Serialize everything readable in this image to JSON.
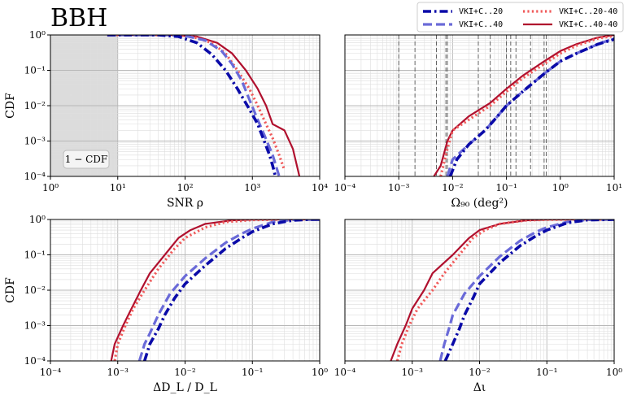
{
  "figure_title": "BBH",
  "legend": [
    {
      "name": "VKI+C..20",
      "color": "#0a0aa8",
      "dash": "dashdot"
    },
    {
      "name": "VKI+C..20-40",
      "color": "#f05a5a",
      "dash": "dotted"
    },
    {
      "name": "VKI+C..40",
      "color": "#6a6ad8",
      "dash": "dashed"
    },
    {
      "name": "VKI+C..40-40",
      "color": "#b0102e",
      "dash": "solid"
    }
  ],
  "chart_data": [
    {
      "type": "line",
      "panel": "top-left",
      "xlabel": "SNR  ρ",
      "ylabel": "CDF",
      "xscale": "log",
      "yscale": "log",
      "xlim": [
        1,
        10000
      ],
      "ylim": [
        0.0001,
        1
      ],
      "xticks": [
        "10^0",
        "10^1",
        "10^2",
        "10^3",
        "10^4"
      ],
      "yticks": [
        "10^-4",
        "10^-3",
        "10^-2",
        "10^-1",
        "10^0"
      ],
      "shaded_region": {
        "x": [
          1,
          10
        ]
      },
      "annotation": "1 − CDF",
      "series": [
        {
          "name": "VKI+C..20",
          "x": [
            7,
            40,
            80,
            150,
            250,
            400,
            600,
            900,
            1200,
            1500,
            1800,
            2000,
            2200
          ],
          "y": [
            1,
            1,
            0.9,
            0.6,
            0.28,
            0.1,
            0.03,
            0.008,
            0.003,
            0.001,
            0.0004,
            0.0002,
            0.0001
          ]
        },
        {
          "name": "VKI+C..40",
          "x": [
            7,
            50,
            100,
            200,
            350,
            500,
            700,
            900,
            1200,
            1500,
            2000,
            2500
          ],
          "y": [
            1,
            1,
            0.95,
            0.7,
            0.35,
            0.15,
            0.05,
            0.015,
            0.004,
            0.0015,
            0.0004,
            0.0001
          ]
        },
        {
          "name": "VKI+C..20-40",
          "x": [
            7,
            60,
            120,
            250,
            400,
            600,
            900,
            1200,
            1600,
            2000,
            2500,
            3000
          ],
          "y": [
            1,
            1,
            0.93,
            0.6,
            0.3,
            0.1,
            0.03,
            0.01,
            0.003,
            0.0012,
            0.0004,
            0.00015
          ]
        },
        {
          "name": "VKI+C..40-40",
          "x": [
            7,
            60,
            150,
            300,
            500,
            800,
            1200,
            1600,
            2000,
            3000,
            4000,
            5000
          ],
          "y": [
            1,
            1,
            0.9,
            0.6,
            0.3,
            0.1,
            0.03,
            0.01,
            0.003,
            0.002,
            0.0006,
            0.0001
          ]
        }
      ]
    },
    {
      "type": "line",
      "panel": "top-right",
      "xlabel": "Ω₉₀ (deg²)",
      "ylabel": "",
      "xscale": "log",
      "yscale": "log",
      "xlim": [
        0.0001,
        10
      ],
      "ylim": [
        0.0001,
        1
      ],
      "xticks": [
        "10^-4",
        "10^-3",
        "10^-2",
        "10^-1",
        "10^0",
        "10^1"
      ],
      "yticks": [],
      "vlines": [
        0.001,
        0.002,
        0.005,
        0.0075,
        0.008,
        0.03,
        0.05,
        0.1,
        0.12,
        0.15,
        0.28,
        0.5,
        0.55,
        10
      ],
      "series": [
        {
          "name": "VKI+C..20",
          "x": [
            0.009,
            0.012,
            0.02,
            0.04,
            0.06,
            0.1,
            0.2,
            0.5,
            1,
            2,
            5,
            10
          ],
          "y": [
            0.0001,
            0.0003,
            0.0008,
            0.002,
            0.004,
            0.01,
            0.025,
            0.08,
            0.18,
            0.3,
            0.55,
            0.75
          ]
        },
        {
          "name": "VKI+C..40",
          "x": [
            0.008,
            0.01,
            0.02,
            0.04,
            0.06,
            0.1,
            0.2,
            0.5,
            1,
            2,
            5,
            10
          ],
          "y": [
            0.0001,
            0.0003,
            0.0008,
            0.002,
            0.004,
            0.01,
            0.025,
            0.08,
            0.18,
            0.3,
            0.55,
            0.8
          ]
        },
        {
          "name": "VKI+C..20-40",
          "x": [
            0.006,
            0.008,
            0.01,
            0.02,
            0.05,
            0.1,
            0.2,
            0.5,
            1,
            2,
            5,
            10
          ],
          "y": [
            0.0001,
            0.0006,
            0.002,
            0.004,
            0.01,
            0.025,
            0.06,
            0.15,
            0.3,
            0.5,
            0.8,
            0.95
          ]
        },
        {
          "name": "VKI+C..40-40",
          "x": [
            0.0045,
            0.006,
            0.008,
            0.01,
            0.02,
            0.05,
            0.1,
            0.2,
            0.5,
            1,
            2,
            5,
            10
          ],
          "y": [
            0.0001,
            0.0002,
            0.001,
            0.002,
            0.005,
            0.012,
            0.03,
            0.07,
            0.18,
            0.35,
            0.55,
            0.85,
            1
          ]
        }
      ]
    },
    {
      "type": "line",
      "panel": "bottom-left",
      "xlabel": "ΔD_L / D_L",
      "ylabel": "CDF",
      "xscale": "log",
      "yscale": "log",
      "xlim": [
        0.0001,
        1
      ],
      "ylim": [
        0.0001,
        1
      ],
      "xticks": [
        "10^-4",
        "10^-3",
        "10^-2",
        "10^-1",
        "10^0"
      ],
      "yticks": [
        "10^-4",
        "10^-3",
        "10^-2",
        "10^-1",
        "10^0"
      ],
      "series": [
        {
          "name": "VKI+C..20",
          "x": [
            0.0025,
            0.003,
            0.004,
            0.005,
            0.007,
            0.01,
            0.02,
            0.04,
            0.07,
            0.1,
            0.2,
            0.4,
            0.7,
            1
          ],
          "y": [
            0.0001,
            0.0003,
            0.0008,
            0.002,
            0.006,
            0.015,
            0.05,
            0.15,
            0.3,
            0.45,
            0.75,
            0.95,
            1,
            1
          ]
        },
        {
          "name": "VKI+C..40",
          "x": [
            0.0021,
            0.0025,
            0.003,
            0.004,
            0.006,
            0.01,
            0.02,
            0.04,
            0.07,
            0.1,
            0.2,
            0.4,
            1
          ],
          "y": [
            0.0001,
            0.0003,
            0.0006,
            0.002,
            0.008,
            0.025,
            0.08,
            0.22,
            0.4,
            0.55,
            0.85,
            0.98,
            1
          ]
        },
        {
          "name": "VKI+C..20-40",
          "x": [
            0.0009,
            0.001,
            0.0013,
            0.0017,
            0.0025,
            0.004,
            0.007,
            0.01,
            0.02,
            0.04,
            0.1,
            0.3,
            1
          ],
          "y": [
            0.0001,
            0.0003,
            0.001,
            0.003,
            0.01,
            0.04,
            0.15,
            0.3,
            0.6,
            0.85,
            0.97,
            1,
            1
          ]
        },
        {
          "name": "VKI+C..40-40",
          "x": [
            0.0008,
            0.0009,
            0.0012,
            0.0016,
            0.0022,
            0.003,
            0.005,
            0.008,
            0.012,
            0.02,
            0.05,
            0.1,
            0.3,
            1
          ],
          "y": [
            0.0001,
            0.0003,
            0.001,
            0.003,
            0.01,
            0.03,
            0.1,
            0.3,
            0.5,
            0.75,
            0.95,
            0.99,
            1,
            1
          ]
        }
      ]
    },
    {
      "type": "line",
      "panel": "bottom-right",
      "xlabel": "Δι",
      "ylabel": "",
      "xscale": "log",
      "yscale": "log",
      "xlim": [
        0.0001,
        1
      ],
      "ylim": [
        0.0001,
        1
      ],
      "xticks": [
        "10^-4",
        "10^-3",
        "10^-2",
        "10^-1",
        "10^0"
      ],
      "yticks": [],
      "series": [
        {
          "name": "VKI+C..20",
          "x": [
            0.0031,
            0.004,
            0.005,
            0.006,
            0.008,
            0.01,
            0.02,
            0.04,
            0.07,
            0.1,
            0.2,
            0.4,
            1
          ],
          "y": [
            0.0001,
            0.0003,
            0.0008,
            0.002,
            0.006,
            0.015,
            0.06,
            0.18,
            0.35,
            0.5,
            0.8,
            0.97,
            1
          ]
        },
        {
          "name": "VKI+C..40",
          "x": [
            0.0026,
            0.003,
            0.0035,
            0.004,
            0.006,
            0.01,
            0.02,
            0.04,
            0.07,
            0.1,
            0.2,
            0.4,
            1
          ],
          "y": [
            0.0001,
            0.0003,
            0.0008,
            0.002,
            0.008,
            0.025,
            0.09,
            0.25,
            0.45,
            0.6,
            0.85,
            0.98,
            1
          ]
        },
        {
          "name": "VKI+C..20-40",
          "x": [
            0.0006,
            0.0007,
            0.0009,
            0.0012,
            0.002,
            0.003,
            0.005,
            0.008,
            0.012,
            0.02,
            0.05,
            0.1,
            0.3,
            1
          ],
          "y": [
            0.0001,
            0.0003,
            0.001,
            0.003,
            0.01,
            0.03,
            0.1,
            0.3,
            0.5,
            0.75,
            0.95,
            0.99,
            1,
            1
          ]
        },
        {
          "name": "VKI+C..40-40",
          "x": [
            0.00048,
            0.0006,
            0.0008,
            0.001,
            0.0015,
            0.002,
            0.004,
            0.007,
            0.01,
            0.02,
            0.05,
            0.1,
            0.3,
            1
          ],
          "y": [
            0.0001,
            0.0003,
            0.001,
            0.003,
            0.01,
            0.03,
            0.1,
            0.3,
            0.5,
            0.75,
            0.95,
            0.99,
            1,
            1
          ]
        }
      ]
    }
  ]
}
